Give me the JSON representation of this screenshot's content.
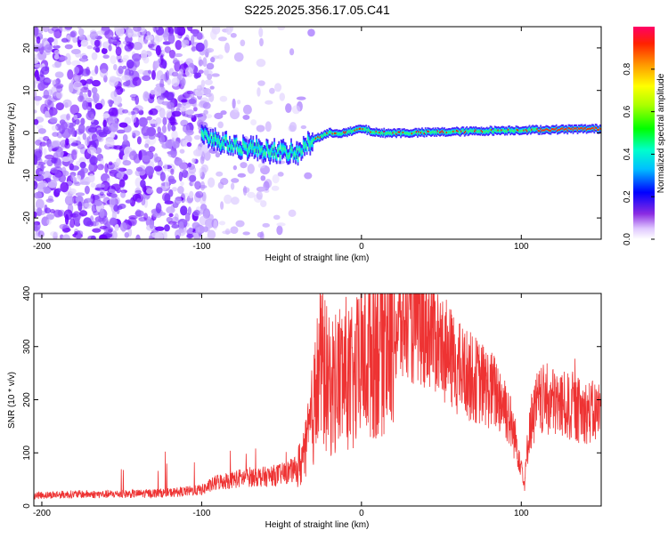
{
  "title": "S225.2025.356.17.05.C41",
  "chart_data": [
    {
      "type": "heatmap",
      "title": "S225.2025.356.17.05.C41",
      "xlabel": "Height of straight line (km)",
      "ylabel": "Frequency (Hz)",
      "xlim": [
        -205,
        150
      ],
      "ylim": [
        -25,
        25
      ],
      "xticks": [
        -200,
        -100,
        0,
        100
      ],
      "yticks": [
        -20,
        -10,
        0,
        10,
        20
      ],
      "ridge": {
        "description_points_x": [
          -100,
          -90,
          -80,
          -70,
          -60,
          -50,
          -40,
          -35,
          -30,
          -20,
          -10,
          0,
          10,
          30,
          60,
          90,
          120,
          150
        ],
        "frequency_hz": [
          0,
          -2,
          -3,
          -3.5,
          -4,
          -4.5,
          -5,
          -3,
          -1.5,
          0,
          0,
          1,
          0,
          0,
          0.3,
          0.6,
          0.8,
          1
        ]
      },
      "colorbar": {
        "label": "Normalized spectral amplitude",
        "ticks": [
          "0.0",
          "0.2",
          "0.4",
          "0.6",
          "0.8"
        ],
        "range": [
          0,
          1
        ]
      }
    },
    {
      "type": "line",
      "xlabel": "Height of straight line (km)",
      "ylabel": "SNR (10 * v/v)",
      "xlim": [
        -205,
        150
      ],
      "ylim": [
        0,
        400
      ],
      "xticks": [
        -200,
        -100,
        0,
        100
      ],
      "yticks": [
        0,
        100,
        200,
        300,
        400
      ],
      "color": "#ee3333",
      "x": [
        -205,
        -180,
        -160,
        -140,
        -120,
        -100,
        -90,
        -80,
        -70,
        -60,
        -50,
        -40,
        -35,
        -30,
        -27,
        -25,
        -20,
        -15,
        -10,
        -5,
        0,
        5,
        10,
        15,
        20,
        25,
        30,
        35,
        40,
        45,
        50,
        55,
        60,
        65,
        70,
        75,
        80,
        85,
        90,
        95,
        100,
        102,
        105,
        110,
        115,
        120,
        125,
        130,
        135,
        140,
        145,
        150
      ],
      "y": [
        20,
        22,
        22,
        23,
        25,
        30,
        45,
        50,
        55,
        55,
        60,
        70,
        100,
        180,
        250,
        270,
        220,
        240,
        250,
        230,
        270,
        300,
        310,
        320,
        330,
        340,
        345,
        345,
        340,
        330,
        300,
        280,
        260,
        250,
        240,
        230,
        220,
        210,
        190,
        140,
        80,
        40,
        150,
        190,
        200,
        195,
        190,
        185,
        180,
        178,
        175,
        180
      ]
    }
  ]
}
